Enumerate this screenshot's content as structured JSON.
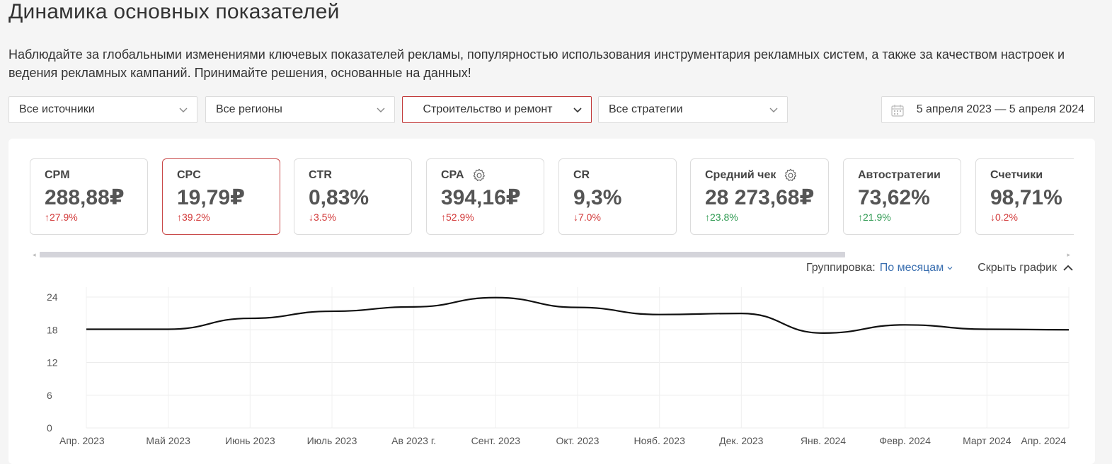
{
  "page": {
    "title": "Динамика основных показателей",
    "description": "Наблюдайте за глобальными изменениями ключевых показателей рекламы, популярностью использования инструментария рекламных систем, а также за качеством настроек и ведения рекламных кампаний. Принимайте решения, основанные на данных!"
  },
  "filters": {
    "sources": "Все источники",
    "regions": "Все регионы",
    "category": "Строительство и ремонт",
    "strategies": "Все стратегии",
    "date_range": "5 апреля 2023 — 5 апреля 2024"
  },
  "cards": [
    {
      "label": "CPM",
      "value": "288,88₽",
      "change": "↑27.9%",
      "trend": "up-red",
      "gear": false,
      "selected": false
    },
    {
      "label": "CPC",
      "value": "19,79₽",
      "change": "↑39.2%",
      "trend": "up-red",
      "gear": false,
      "selected": true
    },
    {
      "label": "CTR",
      "value": "0,83%",
      "change": "↓3.5%",
      "trend": "down-red",
      "gear": false,
      "selected": false
    },
    {
      "label": "CPA",
      "value": "394,16₽",
      "change": "↑52.9%",
      "trend": "up-red",
      "gear": true,
      "selected": false
    },
    {
      "label": "CR",
      "value": "9,3%",
      "change": "↓7.0%",
      "trend": "down-red",
      "gear": false,
      "selected": false
    },
    {
      "label": "Средний чек",
      "value": "28 273,68₽",
      "change": "↑23.8%",
      "trend": "up-green",
      "gear": true,
      "selected": false
    },
    {
      "label": "Автостратегии",
      "value": "73,62%",
      "change": "↑21.9%",
      "trend": "up-green",
      "gear": false,
      "selected": false
    },
    {
      "label": "Счетчики",
      "value": "98,71%",
      "change": "↓0.2%",
      "trend": "down-red",
      "gear": false,
      "selected": false
    }
  ],
  "chart_controls": {
    "grouping_label": "Группировка:",
    "grouping_value": "По месяцам",
    "hide_chart": "Скрыть график"
  },
  "colors": {
    "accent_red": "#c23a3a",
    "link_blue": "#3a6fb0",
    "green": "#2f9a52",
    "line": "#111111"
  },
  "chart_data": {
    "type": "line",
    "x": [
      "Апр. 2023",
      "Май 2023",
      "Июнь 2023",
      "Июль 2023",
      "Ав 2023 г.",
      "Сент. 2023",
      "Окт. 2023",
      "Нояб. 2023",
      "Дек. 2023",
      "Янв. 2024",
      "Февр. 2024",
      "Март 2024",
      "Апр. 2024"
    ],
    "series": [
      {
        "values": [
          18.1,
          18.1,
          20.1,
          21.4,
          22.2,
          23.9,
          22.1,
          20.8,
          21.0,
          17.4,
          18.9,
          18.1,
          18.0
        ]
      }
    ],
    "yticks": [
      0,
      6,
      12,
      18,
      24
    ],
    "ylim": [
      0,
      24
    ],
    "grid": true
  }
}
